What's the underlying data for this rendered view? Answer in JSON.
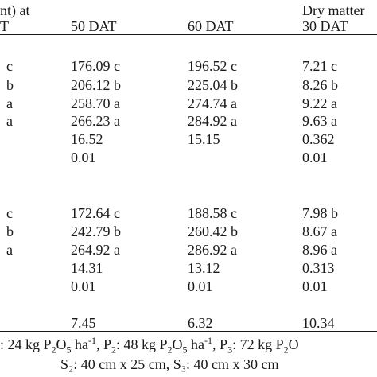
{
  "header": {
    "partial_left_top": "nt) at",
    "partial_left_bottom": "T",
    "col_50": "50 DAT",
    "col_60": "60 DAT",
    "dry_matter": "Dry matter",
    "col_30": "30 DAT"
  },
  "section1": {
    "rows": [
      {
        "cut": "c",
        "v50": "176.09 c",
        "v60": "196.52 c",
        "v30": "7.21 c"
      },
      {
        "cut": "b",
        "v50": "206.12 b",
        "v60": "225.04 b",
        "v30": "8.26 b"
      },
      {
        "cut": "a",
        "v50": "258.70 a",
        "v60": "274.74 a",
        "v30": "9.22 a"
      },
      {
        "cut": "a",
        "v50": "266.23 a",
        "v60": "284.92 a",
        "v30": "9.63 a"
      }
    ],
    "lsd": {
      "v50": "16.52",
      "v60": "15.15",
      "v30": "0.362"
    },
    "level": {
      "v50": "0.01",
      "v60": "",
      "v30": "0.01"
    }
  },
  "section2": {
    "rows": [
      {
        "cut": "c",
        "v50": "172.64 c",
        "v60": "188.58 c",
        "v30": "7.98 b"
      },
      {
        "cut": "b",
        "v50": "242.79 b",
        "v60": "260.42 b",
        "v30": "8.67 a"
      },
      {
        "cut": "a",
        "v50": "264.92 a",
        "v60": "286.92 a",
        "v30": "8.96 a"
      }
    ],
    "lsd": {
      "v50": "14.31",
      "v60": "13.12",
      "v30": "0.313"
    },
    "level": {
      "v50": "0.01",
      "v60": "0.01",
      "v30": "0.01"
    }
  },
  "cv": {
    "v50": "7.45",
    "v60": "6.32",
    "v30": "10.34"
  },
  "footnote": {
    "line1_a": ": 24 kg P",
    "line1_sub1": "2",
    "line1_b": "O",
    "line1_sub2": "5",
    "line1_c": " ha",
    "line1_sup1": "-1",
    "line1_d": ", P",
    "line1_sub3": "2",
    "line1_e": ": 48 kg P",
    "line1_sub4": "2",
    "line1_f": "O",
    "line1_sub5": "5",
    "line1_g": " ha",
    "line1_sup2": "-1",
    "line1_h": ", P",
    "line1_sub6": "3",
    "line1_i": ": 72 kg P",
    "line1_sub7": "2",
    "line1_j": "O",
    "line2": "S₂: 40 cm x 25 cm, S₃: 40 cm x 30 cm"
  }
}
